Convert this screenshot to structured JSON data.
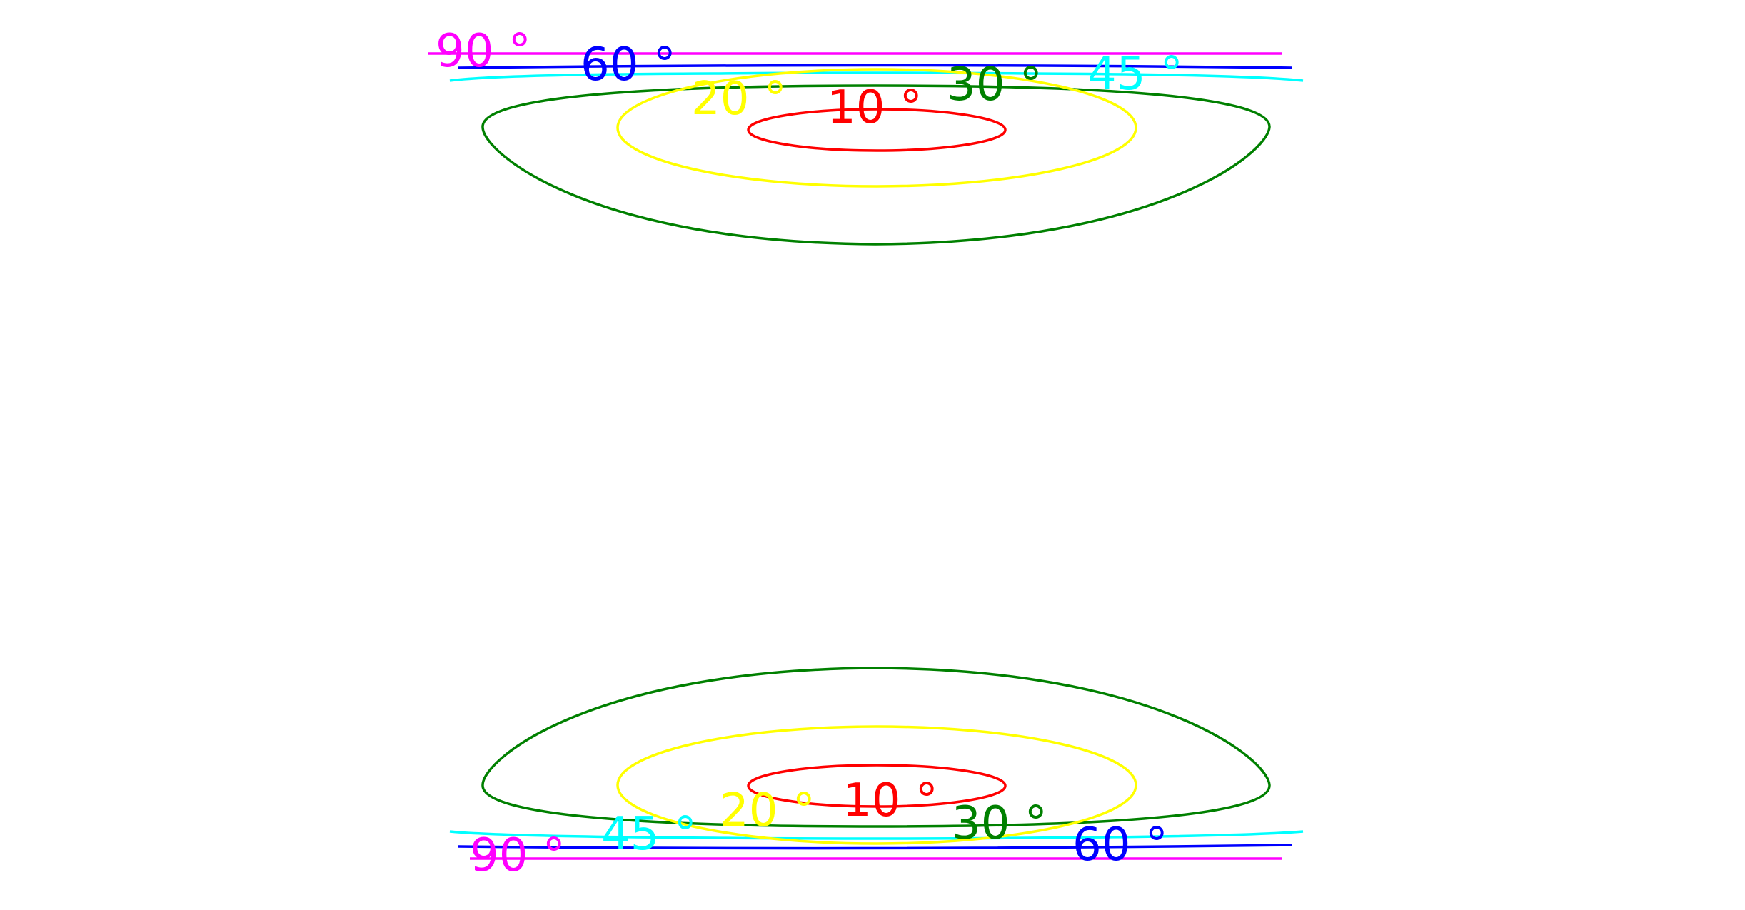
{
  "diagram": {
    "background_color": "#ffffff",
    "contours": [
      {
        "key": "c10",
        "label": "10 °",
        "color": "#ff0000"
      },
      {
        "key": "c20",
        "label": "20 °",
        "color": "#ffff00"
      },
      {
        "key": "c30",
        "label": "30 °",
        "color": "#008000"
      },
      {
        "key": "c45",
        "label": "45 °",
        "color": "#00ffff"
      },
      {
        "key": "c60",
        "label": "60 °",
        "color": "#0000ff"
      },
      {
        "key": "c90",
        "label": "90 °",
        "color": "#ff00ff"
      }
    ],
    "labels": {
      "top": {
        "c10": "10 °",
        "c20": "20 °",
        "c30": "30 °",
        "c45": "45 °",
        "c60": "60 °",
        "c90": "90 °"
      },
      "bottom": {
        "c10": "10 °",
        "c20": "20 °",
        "c30": "30 °",
        "c45": "45 °",
        "c60": "60 °",
        "c90": "90 °"
      }
    }
  }
}
